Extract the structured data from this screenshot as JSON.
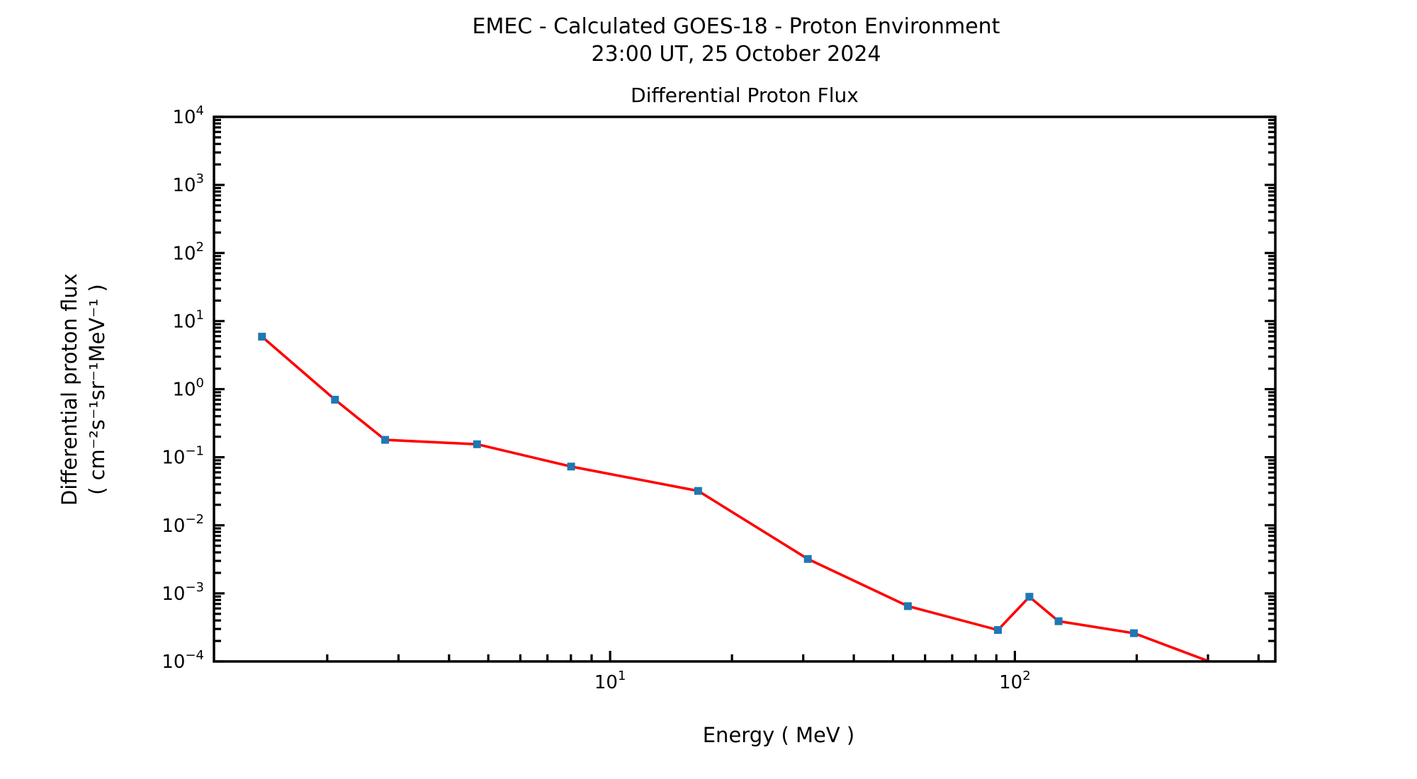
{
  "figure": {
    "suptitle_line1": "EMEC - Calculated GOES-18 - Proton Environment",
    "suptitle_line2": "23:00 UT, 25 October 2024",
    "axes_title": "Differential Proton Flux",
    "xlabel": "Energy ( MeV )",
    "ylabel_line1": "Differential proton flux",
    "ylabel_line2": "( cm⁻²s⁻¹sr⁻¹MeV⁻¹ )"
  },
  "chart_data": {
    "type": "line",
    "title": "Differential Proton Flux",
    "suptitle": "EMEC - Calculated GOES-18 - Proton Environment",
    "subtitle": "23:00 UT, 25 October 2024",
    "xlabel": "Energy ( MeV )",
    "ylabel": "Differential proton flux ( cm^-2 s^-1 sr^-1 MeV^-1 )",
    "x_scale": "log",
    "y_scale": "log",
    "xlim": [
      1.05,
      440
    ],
    "ylim": [
      0.0001,
      10000
    ],
    "x_tick_exponents": [
      1,
      2
    ],
    "y_tick_exponents": [
      4,
      3,
      2,
      1,
      0,
      -1,
      -2,
      -3,
      -4
    ],
    "grid": false,
    "legend": "none",
    "colors": {
      "line": "#ff0000",
      "marker": "#1f77b4",
      "axis": "#000000"
    },
    "series": [
      {
        "name": "Differential proton flux",
        "marker": "square",
        "x": [
          1.38,
          2.09,
          2.78,
          4.69,
          8.01,
          16.5,
          30.8,
          54.4,
          90.8,
          108.6,
          128.2,
          196.8,
          333.9
        ],
        "y": [
          5.9,
          0.7,
          0.18,
          0.155,
          0.073,
          0.032,
          0.0032,
          0.00065,
          0.00029,
          0.00089,
          0.00039,
          0.00026,
          8e-05
        ]
      }
    ]
  }
}
